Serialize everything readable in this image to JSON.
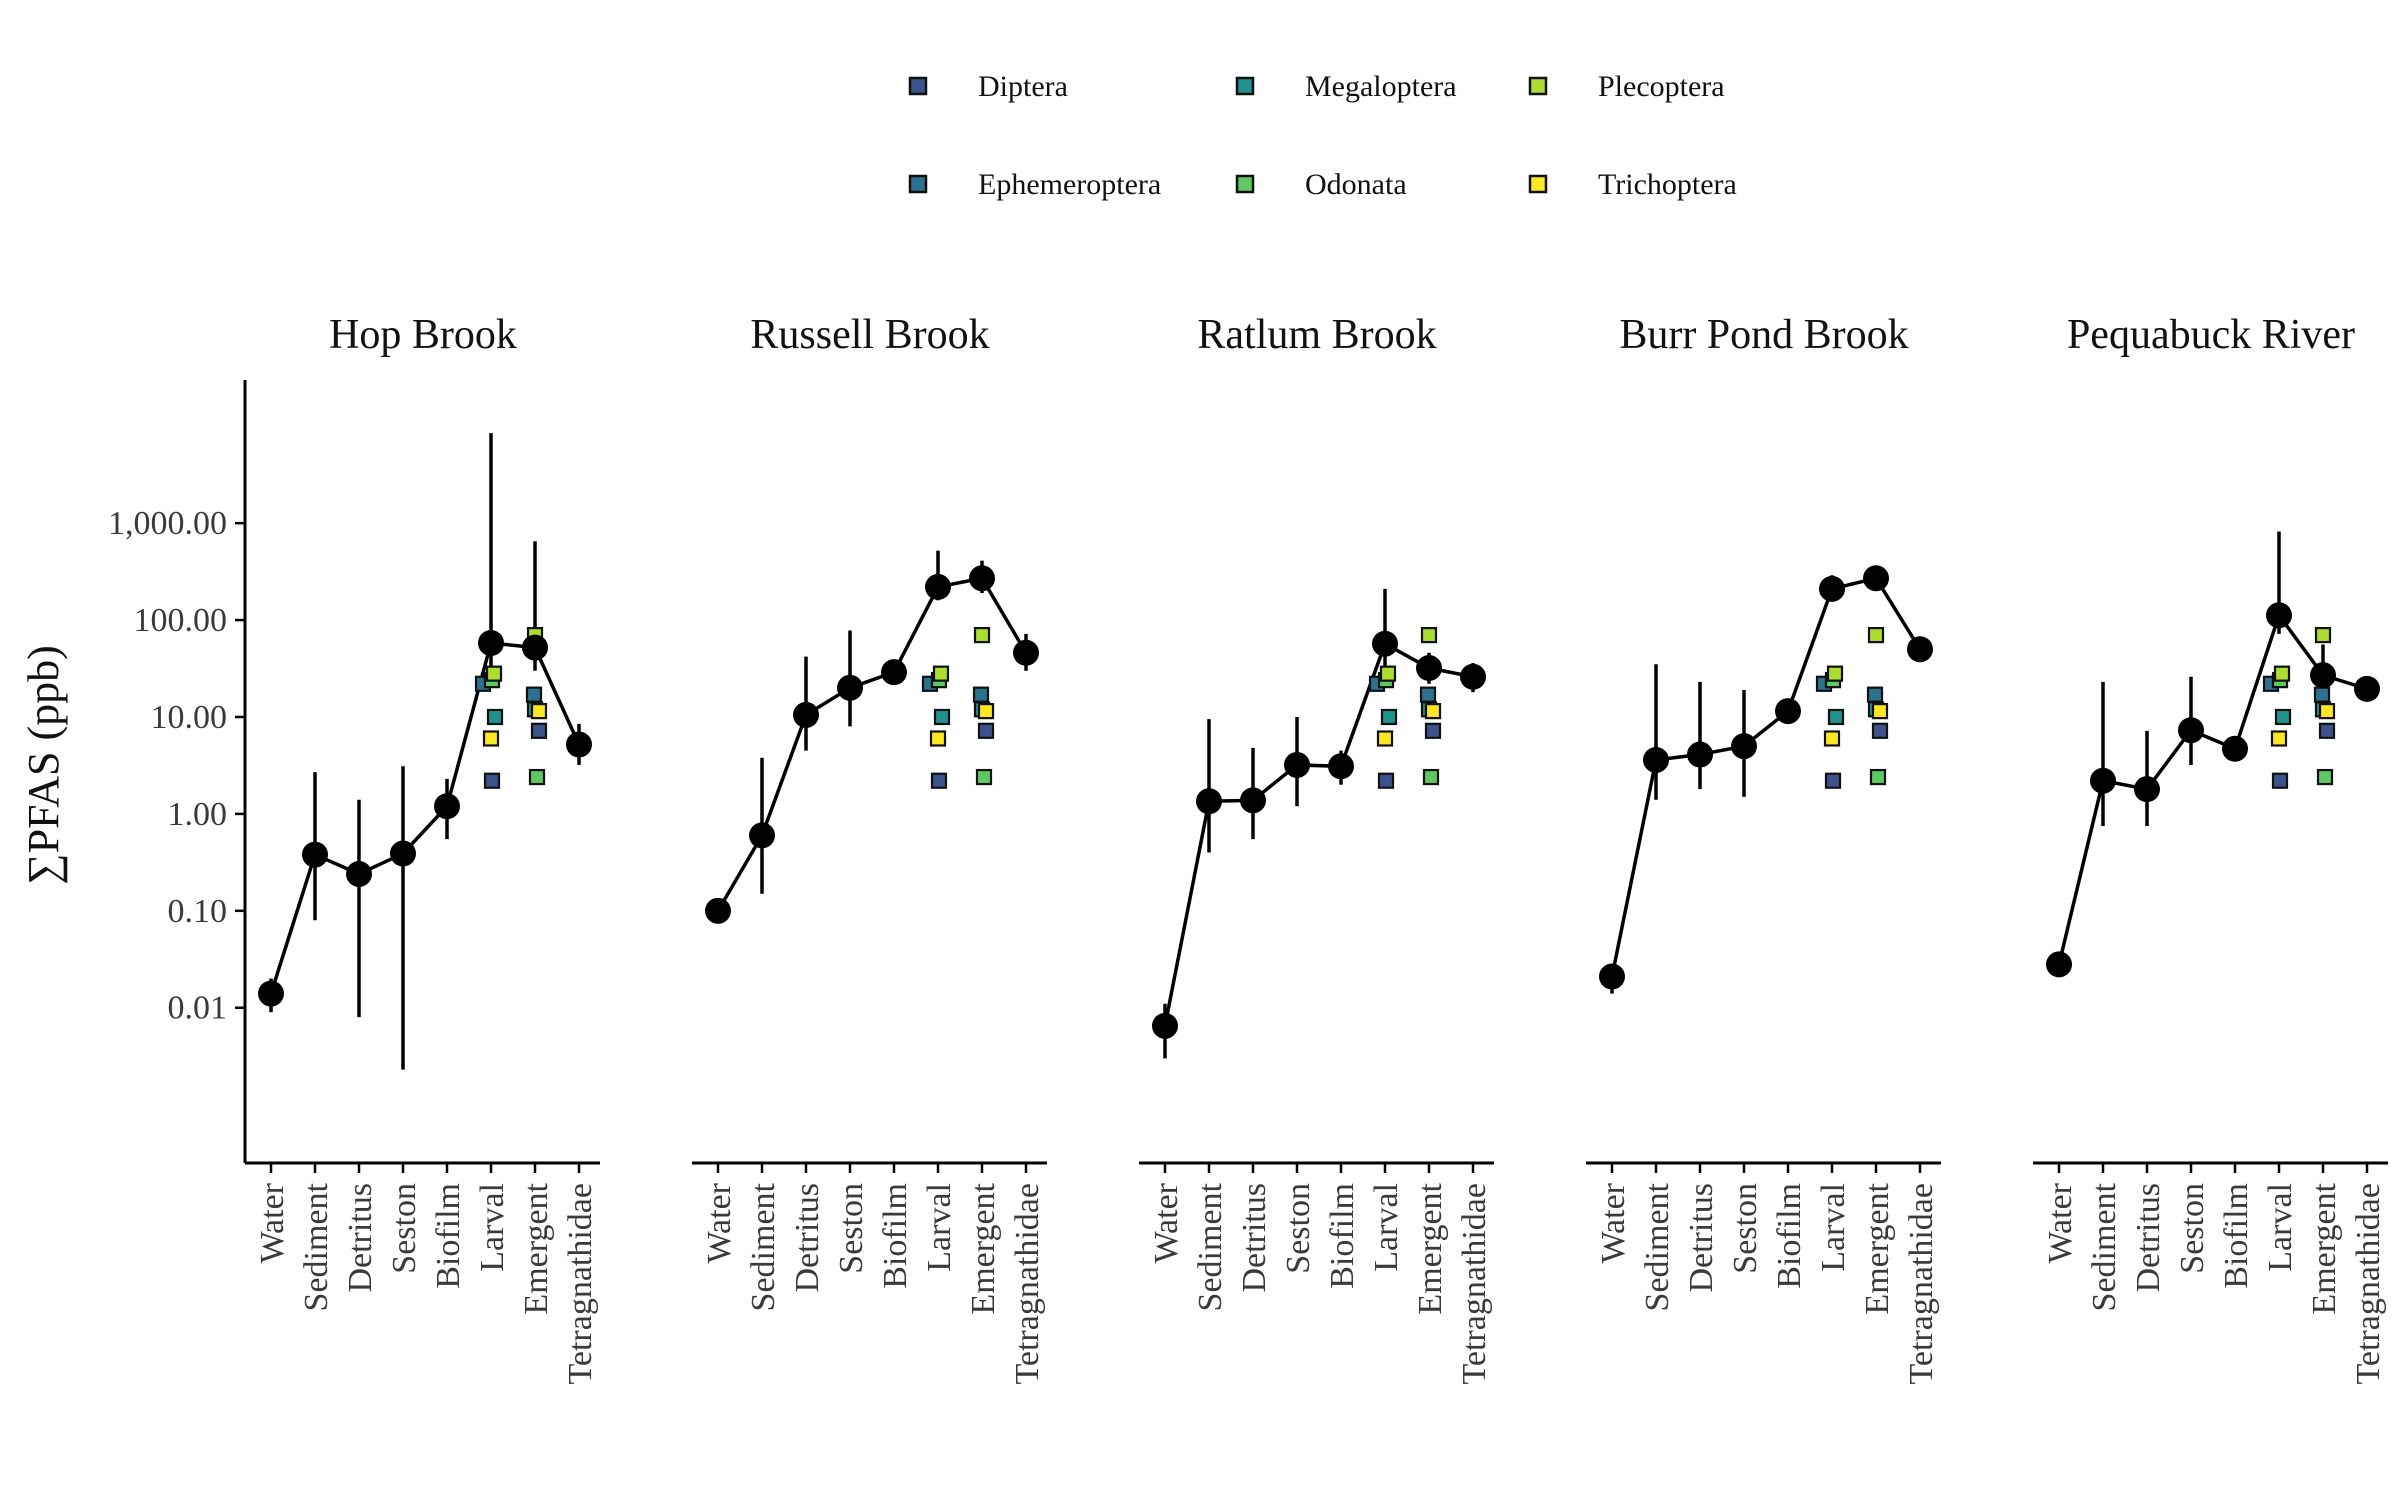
{
  "chart_data": {
    "type": "line",
    "y_scale": "log",
    "ylabel": "∑PFAS (ppb)",
    "ylim": [
      0.00025,
      30000
    ],
    "y_ticks": [
      {
        "value": 0.01,
        "label": "0.01"
      },
      {
        "value": 0.1,
        "label": "0.10"
      },
      {
        "value": 1,
        "label": "1.00"
      },
      {
        "value": 10,
        "label": "10.00"
      },
      {
        "value": 100,
        "label": "100.00"
      },
      {
        "value": 1000,
        "label": "1,000.00"
      }
    ],
    "categories": [
      "Water",
      "Sediment",
      "Detritus",
      "Seston",
      "Biofilm",
      "Larval",
      "Emergent",
      "Tetragnathidae"
    ],
    "legend": {
      "placement": "top",
      "entries": [
        {
          "name": "Diptera",
          "color": "#3b528b"
        },
        {
          "name": "Ephemeroptera",
          "color": "#2c728e"
        },
        {
          "name": "Megaloptera",
          "color": "#21918c"
        },
        {
          "name": "Odonata",
          "color": "#5ec962"
        },
        {
          "name": "Plecoptera",
          "color": "#addc30"
        },
        {
          "name": "Trichoptera",
          "color": "#fde725"
        }
      ]
    },
    "taxa_points": {
      "Larval": {
        "Diptera": 2.2,
        "Ephemeroptera": 22,
        "Megaloptera": 10,
        "Odonata": 24,
        "Plecoptera": 28,
        "Trichoptera": 6
      },
      "Emergent": {
        "Diptera": 7.2,
        "Ephemeroptera": 17,
        "Megaloptera": 12,
        "Odonata": 2.4,
        "Plecoptera": 70,
        "Trichoptera": 11.5
      }
    },
    "panels": [
      {
        "title": "Hop Brook",
        "means": [
          0.014,
          0.38,
          0.24,
          0.39,
          1.2,
          58,
          52,
          5.2
        ],
        "lower": [
          0.009,
          0.08,
          0.008,
          0.0023,
          0.55,
          22,
          30,
          3.2
        ],
        "upper": [
          0.02,
          2.7,
          1.4,
          3.1,
          2.3,
          8500,
          650,
          8.5
        ]
      },
      {
        "title": "Russell Brook",
        "means": [
          0.1,
          0.6,
          10.5,
          20,
          29,
          220,
          270,
          46
        ],
        "lower": [
          0.095,
          0.15,
          4.5,
          8,
          27,
          160,
          190,
          30
        ],
        "upper": [
          0.105,
          3.8,
          42,
          78,
          32,
          520,
          410,
          72
        ]
      },
      {
        "title": "Ratlum Brook",
        "means": [
          0.0065,
          1.35,
          1.38,
          3.2,
          3.1,
          57,
          32,
          26
        ],
        "lower": [
          0.003,
          0.4,
          0.55,
          1.2,
          2.0,
          30,
          22,
          18
        ],
        "upper": [
          0.011,
          9.5,
          4.8,
          10,
          4.5,
          210,
          46,
          36
        ]
      },
      {
        "title": "Burr Pond Brook",
        "means": [
          0.021,
          3.6,
          4.1,
          5.0,
          11.5,
          210,
          270,
          50
        ],
        "lower": [
          0.014,
          1.4,
          1.8,
          1.5,
          10.5,
          180,
          240,
          47
        ],
        "upper": [
          0.024,
          35,
          23,
          19,
          12.5,
          290,
          300,
          53
        ]
      },
      {
        "title": "Pequabuck River",
        "means": [
          0.028,
          2.2,
          1.8,
          7.3,
          4.7,
          112,
          27,
          19.5
        ],
        "lower": [
          0.026,
          0.75,
          0.75,
          3.2,
          3.6,
          72,
          16,
          17
        ],
        "upper": [
          0.03,
          23,
          7.2,
          26,
          6.0,
          820,
          56,
          22
        ]
      }
    ]
  }
}
